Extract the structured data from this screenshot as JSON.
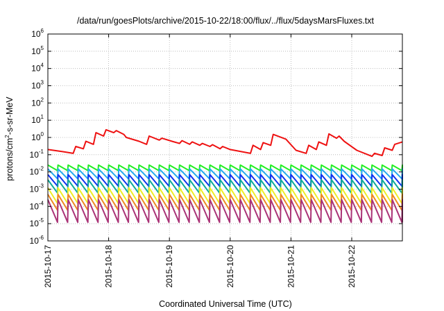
{
  "chart_data": {
    "type": "line",
    "title": "/data/run/goesPlots/archive/2015-10-22/18:00/flux/../flux/5daysMarsFluxes.txt",
    "xlabel": "Coordinated Universal Time (UTC)",
    "ylabel": "protons/cm²-s-sr-MeV",
    "ylabel_parts": {
      "base": "protons/cm",
      "sup": "2",
      "rest": "-s-sr-MeV"
    },
    "xlim": [
      "2015-10-17",
      "2015-10-22T20:00"
    ],
    "ylim_log10": [
      -6,
      6
    ],
    "y_scale": "log",
    "grid": true,
    "x_tick_labels": [
      "2015-10-17",
      "2015-10-18",
      "2015-10-19",
      "2015-10-20",
      "2015-10-21",
      "2015-10-22"
    ],
    "y_tick_labels": [
      {
        "base": "10",
        "exp": "-6"
      },
      {
        "base": "10",
        "exp": "-5"
      },
      {
        "base": "10",
        "exp": "-4"
      },
      {
        "base": "10",
        "exp": "-3"
      },
      {
        "base": "10",
        "exp": "-2"
      },
      {
        "base": "10",
        "exp": "-1"
      },
      {
        "base": "10",
        "exp": "0"
      },
      {
        "base": "10",
        "exp": "1"
      },
      {
        "base": "10",
        "exp": "2"
      },
      {
        "base": "10",
        "exp": "3"
      },
      {
        "base": "10",
        "exp": "4"
      },
      {
        "base": "10",
        "exp": "5"
      },
      {
        "base": "10",
        "exp": "6"
      }
    ],
    "series": [
      {
        "color": "#ee1111",
        "x": [
          "2015-10-17T00:00",
          "2015-10-17T06:00",
          "2015-10-17T10:00",
          "2015-10-17T11:00",
          "2015-10-17T14:00",
          "2015-10-17T15:00",
          "2015-10-17T18:00",
          "2015-10-17T19:00",
          "2015-10-17T22:00",
          "2015-10-17T23:00",
          "2015-10-18T02:00",
          "2015-10-18T03:00",
          "2015-10-18T06:00",
          "2015-10-18T07:00",
          "2015-10-18T12:00",
          "2015-10-18T15:00",
          "2015-10-18T16:00",
          "2015-10-18T20:00",
          "2015-10-18T21:00",
          "2015-10-19T01:00",
          "2015-10-19T04:00",
          "2015-10-19T05:00",
          "2015-10-19T08:00",
          "2015-10-19T09:00",
          "2015-10-19T12:00",
          "2015-10-19T13:00",
          "2015-10-19T16:00",
          "2015-10-19T17:00",
          "2015-10-19T20:00",
          "2015-10-19T21:00",
          "2015-10-20T00:00",
          "2015-10-20T08:00",
          "2015-10-20T09:00",
          "2015-10-20T12:00",
          "2015-10-20T13:00",
          "2015-10-20T16:00",
          "2015-10-20T17:00",
          "2015-10-20T22:00",
          "2015-10-21T02:00",
          "2015-10-21T06:00",
          "2015-10-21T07:00",
          "2015-10-21T10:00",
          "2015-10-21T11:00",
          "2015-10-21T14:00",
          "2015-10-21T15:00",
          "2015-10-21T18:00",
          "2015-10-21T19:00",
          "2015-10-21T21:00",
          "2015-10-22T02:00",
          "2015-10-22T08:00",
          "2015-10-22T09:00",
          "2015-10-22T12:00",
          "2015-10-22T13:00",
          "2015-10-22T16:00",
          "2015-10-22T17:00",
          "2015-10-22T20:00"
        ],
        "y": [
          0.2,
          0.15,
          0.12,
          0.3,
          0.22,
          0.6,
          0.4,
          1.9,
          1.2,
          2.8,
          1.9,
          2.5,
          1.5,
          1.0,
          0.6,
          0.4,
          1.2,
          0.7,
          0.9,
          0.6,
          0.45,
          0.65,
          0.4,
          0.55,
          0.35,
          0.45,
          0.3,
          0.38,
          0.22,
          0.3,
          0.2,
          0.12,
          0.35,
          0.2,
          0.5,
          0.35,
          1.5,
          0.8,
          0.18,
          0.12,
          0.35,
          0.2,
          0.55,
          0.35,
          1.6,
          0.9,
          1.2,
          0.6,
          0.18,
          0.08,
          0.12,
          0.09,
          0.25,
          0.18,
          0.4,
          0.55
        ]
      },
      {
        "color": "#22ee22",
        "x": [
          "2015-10-17T00:00",
          "2015-10-22T20:00"
        ],
        "y": [
          0.02,
          0.025
        ],
        "sawtooth": {
          "start": "2015-10-17T00:00",
          "tooth_hours": 4,
          "peak": 0.025,
          "trough": 0.012
        }
      },
      {
        "color": "#22aaee",
        "x": [
          "2015-10-17T00:00",
          "2015-10-22T20:00"
        ],
        "y": [
          0.012,
          0.015
        ],
        "sawtooth": {
          "start": "2015-10-17T00:00",
          "tooth_hours": 4,
          "peak": 0.015,
          "trough": 0.004
        }
      },
      {
        "color": "#1133ee",
        "x": [
          "2015-10-17T00:00",
          "2015-10-22T20:00"
        ],
        "y": [
          0.006,
          0.007
        ],
        "sawtooth": {
          "start": "2015-10-17T00:00",
          "tooth_hours": 4,
          "peak": 0.007,
          "trough": 0.0015
        }
      },
      {
        "color": "#11aa99",
        "x": [
          "2015-10-17T00:00",
          "2015-10-22T20:00"
        ],
        "y": [
          0.003,
          0.0035
        ],
        "sawtooth": {
          "start": "2015-10-17T00:00",
          "tooth_hours": 4,
          "peak": 0.0035,
          "trough": 0.0006
        }
      },
      {
        "color": "#eeee22",
        "x": [
          "2015-10-17T00:00",
          "2015-10-22T20:00"
        ],
        "y": [
          0.001,
          0.0012
        ],
        "sawtooth": {
          "start": "2015-10-17T00:00",
          "tooth_hours": 4,
          "peak": 0.0012,
          "trough": 0.00015
        }
      },
      {
        "color": "#ee8822",
        "x": [
          "2015-10-17T00:00",
          "2015-10-22T20:00"
        ],
        "y": [
          0.0004,
          0.0005
        ],
        "sawtooth": {
          "start": "2015-10-17T00:00",
          "tooth_hours": 4,
          "peak": 0.0005,
          "trough": 6e-05
        }
      },
      {
        "color": "#aa3377",
        "x": [
          "2015-10-17T00:00",
          "2015-10-22T20:00"
        ],
        "y": [
          0.0002,
          0.00025
        ],
        "sawtooth": {
          "start": "2015-10-17T00:00",
          "tooth_hours": 4,
          "peak": 0.00025,
          "trough": 1.2e-05
        }
      }
    ]
  }
}
